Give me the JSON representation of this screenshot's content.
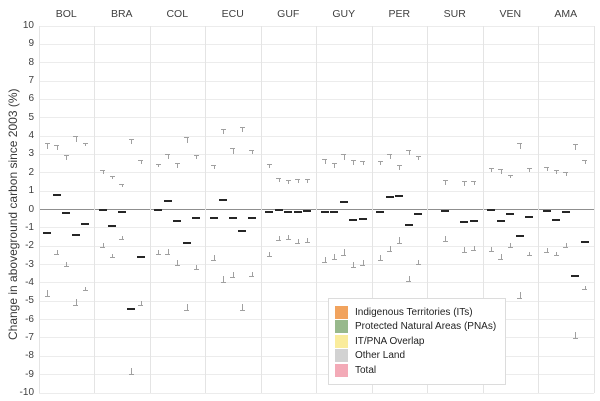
{
  "chart_data": {
    "type": "bar",
    "variant": "floating-range-bars-with-error-whiskers-and-median-lines",
    "title": "",
    "xlabel": "",
    "ylabel": "Change in aboveground carbon since 2003 (%)",
    "ylim": [
      -10,
      10
    ],
    "ytick_step": 1,
    "grid": true,
    "zero_line": true,
    "legend_position": "inside-bottom-right",
    "categories": [
      "BOL",
      "BRA",
      "COL",
      "ECU",
      "GUF",
      "GUY",
      "PER",
      "SUR",
      "VEN",
      "AMA"
    ],
    "value_note": "hi = bar top (%), lo = bar bottom (%), med = median tick inside bar, err = whisker extent beyond bar ends; null = no bar for that country",
    "series": [
      {
        "name": "Indigenous Territories (ITs)",
        "color": "#F1A35E",
        "hi": [
          3.3,
          1.95,
          2.3,
          2.2,
          2.25,
          2.5,
          2.4,
          null,
          2.05,
          2.1
        ],
        "lo": [
          -4.4,
          -1.85,
          -2.2,
          -2.5,
          -2.3,
          -2.6,
          -2.5,
          null,
          -2.05,
          -2.1
        ],
        "med": [
          -1.3,
          -0.05,
          -0.05,
          -0.45,
          -0.15,
          -0.15,
          -0.15,
          null,
          -0.05,
          -0.1
        ],
        "err": [
          0.3,
          0.2,
          0.2,
          0.25,
          0.25,
          0.25,
          0.25,
          null,
          0.2,
          0.2
        ]
      },
      {
        "name": "Protected Natural Areas (PNAs)",
        "color": "#98B98C",
        "hi": [
          3.25,
          1.65,
          2.75,
          4.1,
          1.5,
          2.25,
          2.75,
          1.35,
          1.95,
          1.95
        ],
        "lo": [
          -2.2,
          -2.4,
          -2.15,
          -3.65,
          -1.45,
          -2.4,
          -2.0,
          -1.45,
          -2.45,
          -2.3
        ],
        "med": [
          0.8,
          -0.9,
          0.45,
          0.5,
          0.0,
          -0.15,
          0.7,
          -0.1,
          -0.65,
          -0.55
        ],
        "err": [
          0.25,
          0.2,
          0.25,
          0.3,
          0.2,
          0.3,
          0.25,
          0.25,
          0.25,
          0.2
        ]
      },
      {
        "name": "IT/PNA Overlap",
        "color": "#FAEC9C",
        "hi": [
          2.7,
          1.25,
          2.25,
          3.05,
          1.4,
          2.7,
          2.15,
          null,
          1.7,
          1.85
        ],
        "lo": [
          -2.85,
          -1.45,
          -2.75,
          -3.4,
          -1.4,
          -2.15,
          -1.5,
          null,
          -1.85,
          -1.85
        ],
        "med": [
          -0.2,
          -0.15,
          -0.65,
          -0.45,
          -0.15,
          0.4,
          0.75,
          null,
          -0.25,
          -0.15
        ],
        "err": [
          0.25,
          0.15,
          0.3,
          0.3,
          0.2,
          0.35,
          0.3,
          null,
          0.2,
          0.2
        ]
      },
      {
        "name": "Other Land",
        "color": "#D2D2D2",
        "hi": [
          3.7,
          3.55,
          3.6,
          4.2,
          1.45,
          2.4,
          2.95,
          1.3,
          3.3,
          3.25
        ],
        "lo": [
          -4.9,
          -8.65,
          -5.15,
          -5.15,
          -1.6,
          -2.85,
          -3.6,
          -2.05,
          -4.5,
          -6.7
        ],
        "med": [
          -1.4,
          -5.4,
          -1.8,
          -1.15,
          -0.15,
          -0.55,
          -0.85,
          -0.7,
          -1.45,
          -3.6
        ],
        "err": [
          0.3,
          0.3,
          0.35,
          0.3,
          0.2,
          0.3,
          0.3,
          0.25,
          0.3,
          0.3
        ]
      },
      {
        "name": "Total",
        "color": "#F3AAB7",
        "hi": [
          3.45,
          2.5,
          2.75,
          3.0,
          1.45,
          2.4,
          2.7,
          1.35,
          2.05,
          2.5
        ],
        "lo": [
          -4.2,
          -5.0,
          -3.05,
          -3.4,
          -1.55,
          -2.75,
          -2.75,
          -2.0,
          -2.3,
          -4.15
        ],
        "med": [
          -0.8,
          -2.6,
          -0.45,
          -0.45,
          -0.1,
          -0.5,
          -0.25,
          -0.6,
          -0.4,
          -1.75
        ],
        "err": [
          0.2,
          0.2,
          0.2,
          0.25,
          0.2,
          0.25,
          0.2,
          0.2,
          0.2,
          0.2
        ]
      }
    ]
  },
  "colors": {
    "background": "#ffffff",
    "gridline": "#ececec",
    "facet_separator": "#e4e4e4",
    "zero_line": "#8f8f8f",
    "median_line": "#262626",
    "whisker": "#a0a0a0",
    "tick_text": "#3f3f3f",
    "header_text": "#3f3f3f",
    "legend_border": "#dcdcdc"
  }
}
